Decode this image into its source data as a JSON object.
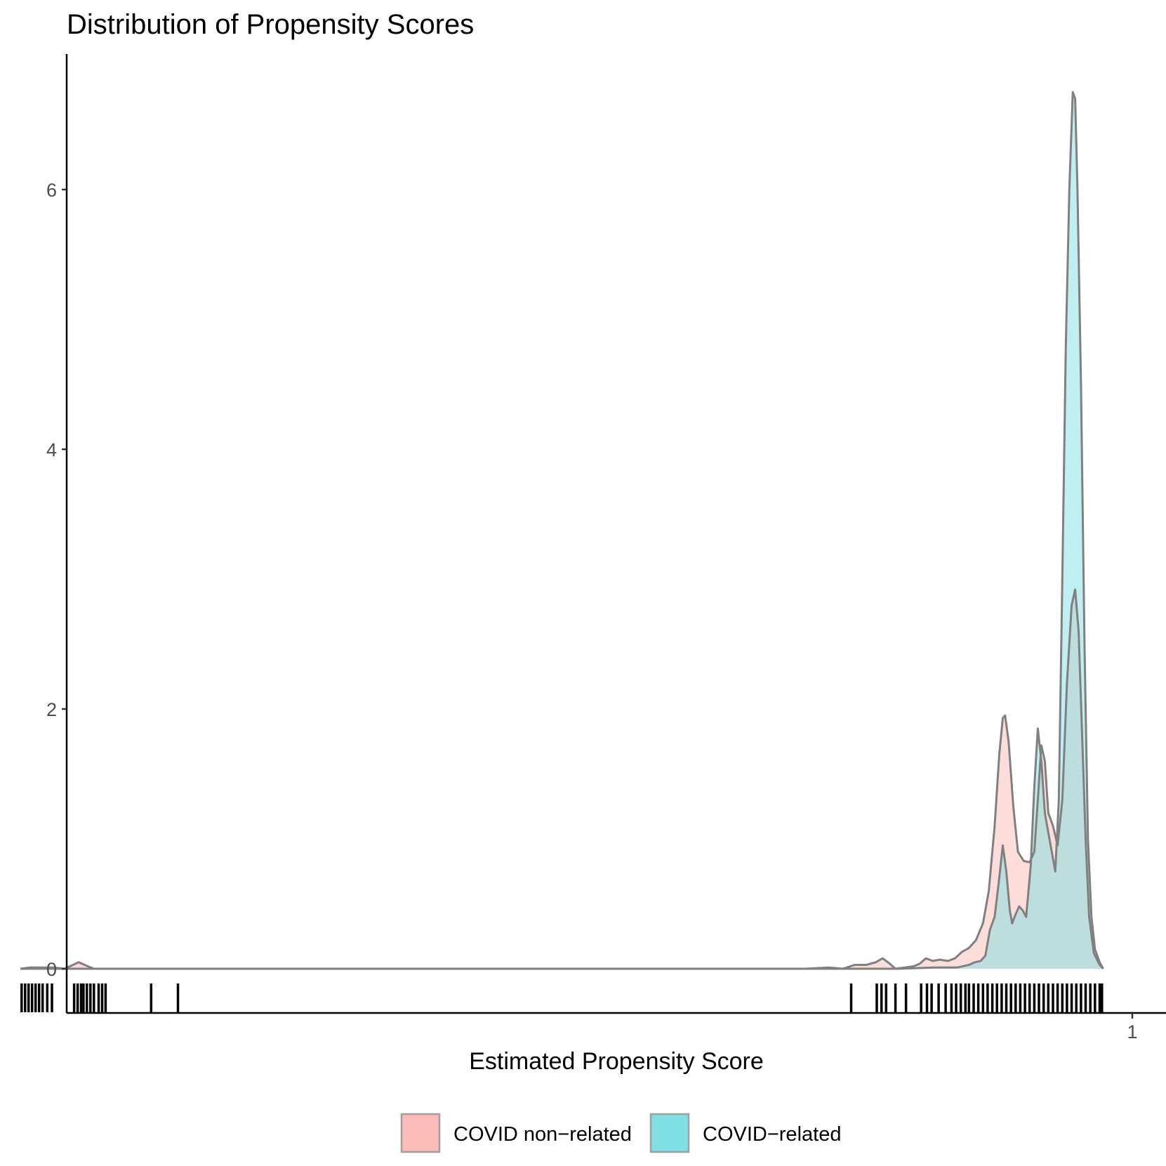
{
  "chart_data": {
    "type": "area",
    "title": "Distribution of Propensity Scores",
    "xlabel": "Estimated Propensity Score",
    "ylabel": "",
    "x_ticks": [
      1
    ],
    "y_ticks": [
      0,
      2,
      4,
      6
    ],
    "xlim": [
      0.0,
      1.0
    ],
    "ylim": [
      -0.35,
      7.0
    ],
    "grid": false,
    "legend_position": "bottom",
    "series": [
      {
        "name": "COVID non−related",
        "color": "#F8766D",
        "fill": "#fbbcb6",
        "points": [
          [
            0.047,
            0.0
          ],
          [
            0.055,
            0.01
          ],
          [
            0.065,
            0.01
          ],
          [
            0.075,
            0.01
          ],
          [
            0.085,
            0.0
          ],
          [
            0.092,
            0.03
          ],
          [
            0.097,
            0.05
          ],
          [
            0.102,
            0.03
          ],
          [
            0.11,
            0.0
          ],
          [
            0.2,
            0.0
          ],
          [
            0.4,
            0.0
          ],
          [
            0.6,
            0.0
          ],
          [
            0.72,
            0.0
          ],
          [
            0.74,
            0.01
          ],
          [
            0.752,
            0.0
          ],
          [
            0.762,
            0.03
          ],
          [
            0.772,
            0.03
          ],
          [
            0.78,
            0.05
          ],
          [
            0.786,
            0.08
          ],
          [
            0.792,
            0.04
          ],
          [
            0.797,
            0.0
          ],
          [
            0.805,
            0.01
          ],
          [
            0.813,
            0.02
          ],
          [
            0.818,
            0.04
          ],
          [
            0.823,
            0.08
          ],
          [
            0.829,
            0.06
          ],
          [
            0.835,
            0.07
          ],
          [
            0.842,
            0.06
          ],
          [
            0.848,
            0.08
          ],
          [
            0.854,
            0.13
          ],
          [
            0.86,
            0.16
          ],
          [
            0.866,
            0.22
          ],
          [
            0.872,
            0.35
          ],
          [
            0.877,
            0.6
          ],
          [
            0.882,
            1.1
          ],
          [
            0.886,
            1.65
          ],
          [
            0.889,
            1.93
          ],
          [
            0.891,
            1.95
          ],
          [
            0.894,
            1.75
          ],
          [
            0.898,
            1.25
          ],
          [
            0.902,
            0.9
          ],
          [
            0.907,
            0.83
          ],
          [
            0.912,
            0.82
          ],
          [
            0.916,
            0.9
          ],
          [
            0.919,
            1.3
          ],
          [
            0.922,
            1.72
          ],
          [
            0.925,
            1.6
          ],
          [
            0.928,
            1.2
          ],
          [
            0.932,
            1.1
          ],
          [
            0.936,
            0.95
          ],
          [
            0.94,
            1.3
          ],
          [
            0.944,
            2.2
          ],
          [
            0.948,
            2.8
          ],
          [
            0.951,
            2.92
          ],
          [
            0.954,
            2.6
          ],
          [
            0.957,
            1.8
          ],
          [
            0.96,
            1.0
          ],
          [
            0.963,
            0.4
          ],
          [
            0.967,
            0.12
          ],
          [
            0.972,
            0.03
          ],
          [
            0.975,
            0.0
          ]
        ]
      },
      {
        "name": "COVID−related",
        "color": "#00BFC4",
        "fill": "#7fdfe2",
        "points": [
          [
            0.047,
            0.0
          ],
          [
            0.1,
            0.0
          ],
          [
            0.3,
            0.0
          ],
          [
            0.5,
            0.0
          ],
          [
            0.7,
            0.0
          ],
          [
            0.8,
            0.0
          ],
          [
            0.83,
            0.01
          ],
          [
            0.85,
            0.01
          ],
          [
            0.86,
            0.03
          ],
          [
            0.865,
            0.05
          ],
          [
            0.87,
            0.06
          ],
          [
            0.874,
            0.1
          ],
          [
            0.878,
            0.3
          ],
          [
            0.882,
            0.4
          ],
          [
            0.886,
            0.7
          ],
          [
            0.889,
            0.95
          ],
          [
            0.892,
            0.75
          ],
          [
            0.895,
            0.45
          ],
          [
            0.897,
            0.35
          ],
          [
            0.9,
            0.42
          ],
          [
            0.903,
            0.48
          ],
          [
            0.906,
            0.45
          ],
          [
            0.909,
            0.4
          ],
          [
            0.913,
            0.8
          ],
          [
            0.916,
            1.4
          ],
          [
            0.919,
            1.85
          ],
          [
            0.922,
            1.6
          ],
          [
            0.925,
            1.2
          ],
          [
            0.928,
            1.05
          ],
          [
            0.931,
            0.9
          ],
          [
            0.934,
            0.75
          ],
          [
            0.937,
            1.3
          ],
          [
            0.94,
            3.0
          ],
          [
            0.943,
            4.8
          ],
          [
            0.946,
            6.0
          ],
          [
            0.949,
            6.75
          ],
          [
            0.951,
            6.7
          ],
          [
            0.953,
            6.0
          ],
          [
            0.956,
            4.5
          ],
          [
            0.959,
            2.5
          ],
          [
            0.962,
            1.0
          ],
          [
            0.965,
            0.4
          ],
          [
            0.968,
            0.15
          ],
          [
            0.972,
            0.05
          ],
          [
            0.975,
            0.0
          ]
        ]
      }
    ],
    "rug_x": [
      0.048,
      0.051,
      0.054,
      0.057,
      0.06,
      0.063,
      0.066,
      0.07,
      0.074,
      0.093,
      0.096,
      0.099,
      0.101,
      0.104,
      0.107,
      0.11,
      0.114,
      0.117,
      0.12,
      0.159,
      0.182,
      0.759,
      0.781,
      0.785,
      0.789,
      0.797,
      0.806,
      0.819,
      0.824,
      0.828,
      0.834,
      0.84,
      0.845,
      0.849,
      0.853,
      0.857,
      0.86,
      0.864,
      0.868,
      0.872,
      0.876,
      0.88,
      0.884,
      0.888,
      0.892,
      0.896,
      0.9,
      0.904,
      0.908,
      0.912,
      0.916,
      0.92,
      0.924,
      0.928,
      0.932,
      0.936,
      0.94,
      0.944,
      0.948,
      0.952,
      0.956,
      0.96,
      0.964,
      0.968,
      0.972,
      0.974
    ]
  }
}
